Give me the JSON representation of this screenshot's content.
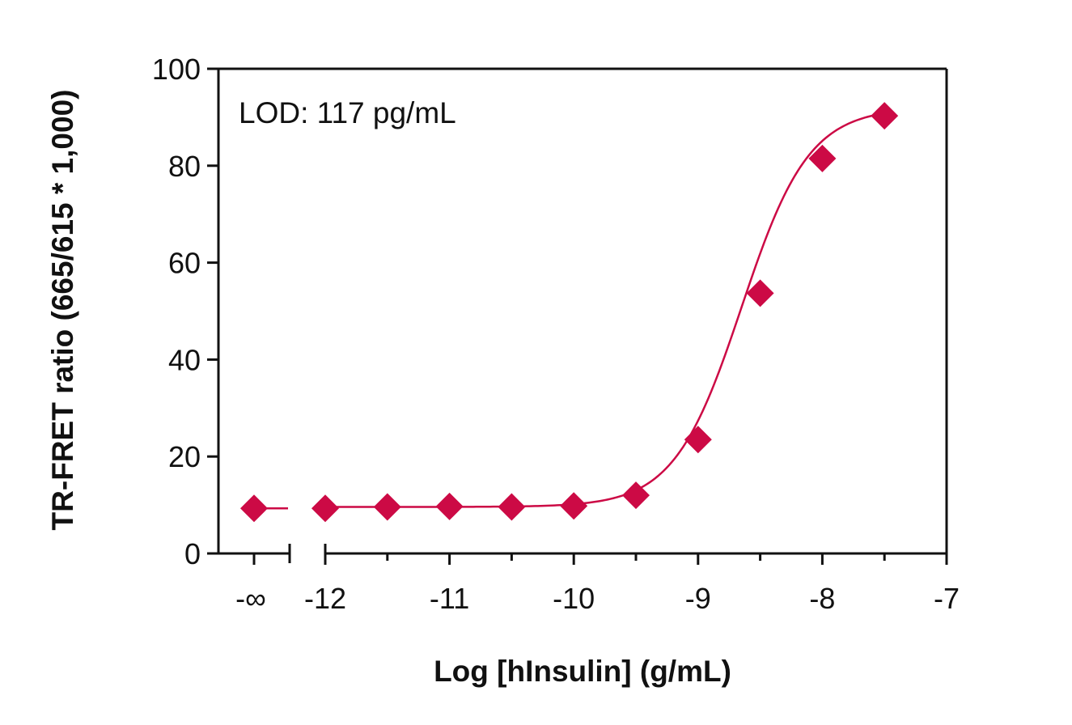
{
  "chart_data": {
    "type": "scatter",
    "xlabel": "Log [hInsulin] (g/mL)",
    "ylabel": "TR-FRET ratio (665/615 * 1,000)",
    "annotation": "LOD: 117 pg/mL",
    "ylim": [
      0,
      100
    ],
    "xlim": [
      -12.3,
      -7
    ],
    "y_ticks": [
      0,
      20,
      40,
      60,
      80,
      100
    ],
    "x_ticks": [
      {
        "value": -12,
        "label": "-12"
      },
      {
        "value": -11,
        "label": "-11"
      },
      {
        "value": -10,
        "label": "-10"
      },
      {
        "value": -9,
        "label": "-9"
      },
      {
        "value": -8,
        "label": "-8"
      },
      {
        "value": -7,
        "label": "-7"
      }
    ],
    "x_minor_ticks": [
      -11.5,
      -10.5,
      -9.5,
      -8.5,
      -7.5
    ],
    "zero_point": {
      "label": "-∞",
      "y": 9.3
    },
    "series": [
      {
        "marker": "diamond",
        "color": "#CC0A45",
        "fit": "4PL",
        "x": [
          -12,
          -11.5,
          -11,
          -10.5,
          -10,
          -9.5,
          -9,
          -8.5,
          -8,
          -7.5
        ],
        "y": [
          9.3,
          9.6,
          9.7,
          9.6,
          9.8,
          12.0,
          23.5,
          53.7,
          81.5,
          90.3
        ]
      }
    ],
    "grid": false,
    "legend": "none"
  }
}
